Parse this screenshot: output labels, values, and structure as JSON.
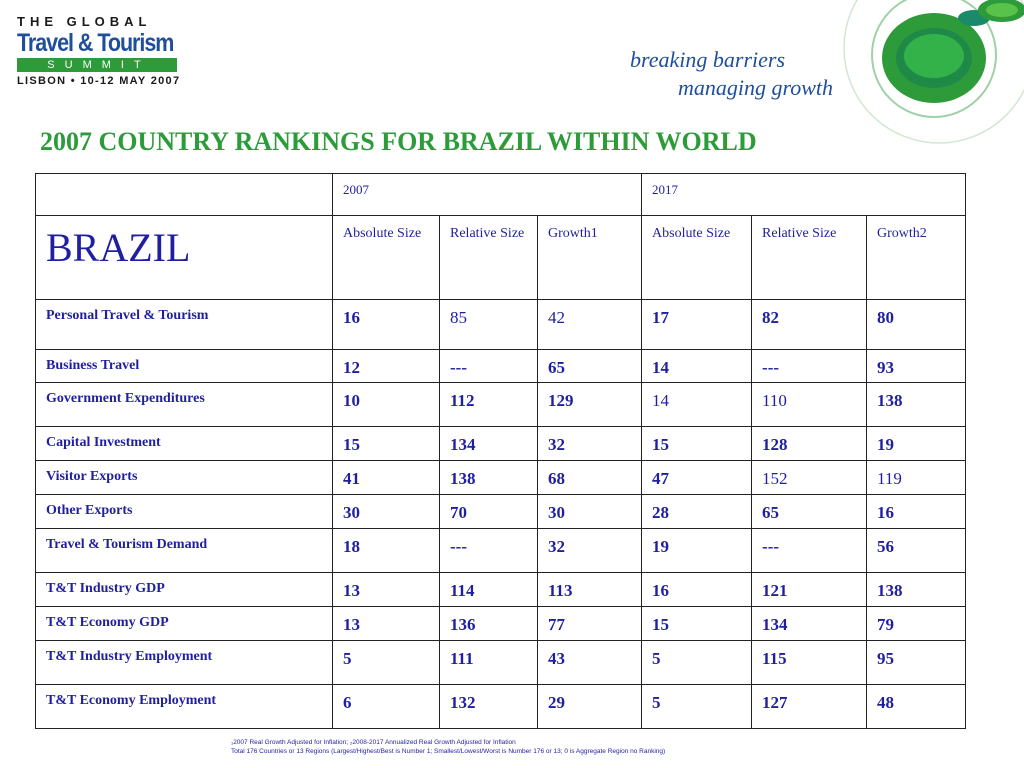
{
  "logo": {
    "top_text": "THE GLOBAL",
    "main_text": "Travel & Tourism",
    "summit_text": "SUMMIT",
    "bottom_text": "LISBON • 10-12 MAY 2007"
  },
  "tagline": {
    "line1": "breaking barriers",
    "line2": "managing growth"
  },
  "title": "2007 COUNTRY RANKINGS FOR BRAZIL WITHIN WORLD",
  "table": {
    "country": "BRAZIL",
    "year1": "2007",
    "year2": "2017",
    "columns": [
      "Absolute Size",
      "Relative Size",
      "Growth1",
      "Absolute Size",
      "Relative Size",
      "Growth2"
    ],
    "rows": [
      {
        "label": "Personal Travel & Tourism",
        "values": [
          "16",
          "85",
          "42",
          "17",
          "82",
          "80"
        ]
      },
      {
        "label": "Business Travel",
        "values": [
          "12",
          "---",
          "65",
          "14",
          "---",
          "93"
        ]
      },
      {
        "label": "Government Expenditures",
        "values": [
          "10",
          "112",
          "129",
          "14",
          "110",
          "138"
        ]
      },
      {
        "label": "Capital Investment",
        "values": [
          "15",
          "134",
          "32",
          "15",
          "128",
          "19"
        ]
      },
      {
        "label": "Visitor Exports",
        "values": [
          "41",
          "138",
          "68",
          "47",
          "152",
          "119"
        ]
      },
      {
        "label": "Other Exports",
        "values": [
          "30",
          "70",
          "30",
          "28",
          "65",
          "16"
        ]
      },
      {
        "label": "Travel & Tourism Demand",
        "values": [
          "18",
          "---",
          "32",
          "19",
          "---",
          "56"
        ]
      },
      {
        "label": "T&T Industry GDP",
        "values": [
          "13",
          "114",
          "113",
          "16",
          "121",
          "138"
        ]
      },
      {
        "label": "T&T Economy GDP",
        "values": [
          "13",
          "136",
          "77",
          "15",
          "134",
          "79"
        ]
      },
      {
        "label": "T&T Industry Employment",
        "values": [
          "5",
          "111",
          "43",
          "5",
          "115",
          "95"
        ]
      },
      {
        "label": "T&T Economy Employment",
        "values": [
          "6",
          "132",
          "29",
          "5",
          "127",
          "48"
        ]
      }
    ]
  },
  "footnote": {
    "line1": "₁2007 Real Growth Adjusted for Inflation; ₂2008-2017 Annualized Real Growth Adjusted for Inflation",
    "line2": "Total 176 Countries or 13 Regions (Largest/Highest/Best is Number 1; Smallest/Lowest/Worst is Number 176 or 13; 0 is Aggregate Region no Ranking)"
  },
  "colors": {
    "title_green": "#2e9b3a",
    "text_blue": "#1f1fa0",
    "logo_blue": "#1f4e9c"
  }
}
